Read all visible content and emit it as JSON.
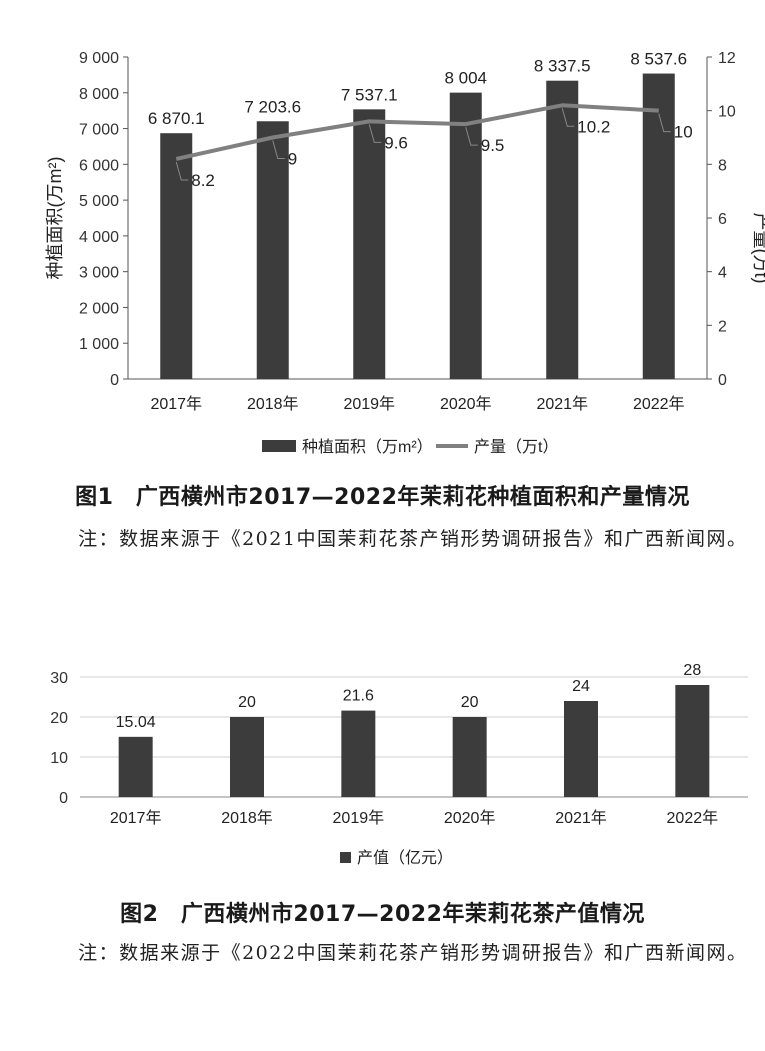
{
  "chart_data": [
    {
      "type": "bar+line",
      "categories": [
        "2017年",
        "2018年",
        "2019年",
        "2020年",
        "2021年",
        "2022年"
      ],
      "series": [
        {
          "name": "种植面积（万m²）",
          "kind": "bar",
          "axis": "left",
          "values": [
            6870.1,
            7203.6,
            7537.1,
            8004,
            8337.5,
            8537.6
          ],
          "labels": [
            "6 870.1",
            "7 203.6",
            "7 537.1",
            "8 004",
            "8 337.5",
            "8 537.6"
          ],
          "color": "#3c3c3c"
        },
        {
          "name": "产量（万t）",
          "kind": "line",
          "axis": "right",
          "values": [
            8.2,
            9,
            9.6,
            9.5,
            10.2,
            10
          ],
          "labels": [
            "8.2",
            "9",
            "9.6",
            "9.5",
            "10.2",
            "10"
          ],
          "color": "#808080"
        }
      ],
      "ylabel_left": "种植面积(万m²)",
      "ylabel_right": "产量(万t)",
      "ylim_left": [
        0,
        9000
      ],
      "ylim_right": [
        0,
        12
      ],
      "yticks_left": [
        "0",
        "1 000",
        "2 000",
        "3 000",
        "4 000",
        "5 000",
        "6 000",
        "7 000",
        "8 000",
        "9 000"
      ],
      "yticks_right": [
        "0",
        "2",
        "4",
        "6",
        "8",
        "10",
        "12"
      ],
      "grid": false,
      "legend_position": "bottom"
    },
    {
      "type": "bar",
      "categories": [
        "2017年",
        "2018年",
        "2019年",
        "2020年",
        "2021年",
        "2022年"
      ],
      "series": [
        {
          "name": "产值（亿元）",
          "values": [
            15.04,
            20,
            21.6,
            20,
            24,
            28
          ],
          "labels": [
            "15.04",
            "20",
            "21.6",
            "20",
            "24",
            "28"
          ],
          "color": "#3c3c3c"
        }
      ],
      "ylim": [
        0,
        30
      ],
      "yticks": [
        "0",
        "10",
        "20",
        "30"
      ],
      "grid": true,
      "legend_position": "bottom"
    }
  ],
  "figure1": {
    "caption": "图1　广西横州市2017—2022年茉莉花种植面积和产量情况",
    "note": "注：数据来源于《2021中国茉莉花茶产销形势调研报告》和广西新闻网。"
  },
  "figure2": {
    "caption": "图2　广西横州市2017—2022年茉莉花茶产值情况",
    "note": "注：数据来源于《2022中国茉莉花茶产销形势调研报告》和广西新闻网。"
  }
}
